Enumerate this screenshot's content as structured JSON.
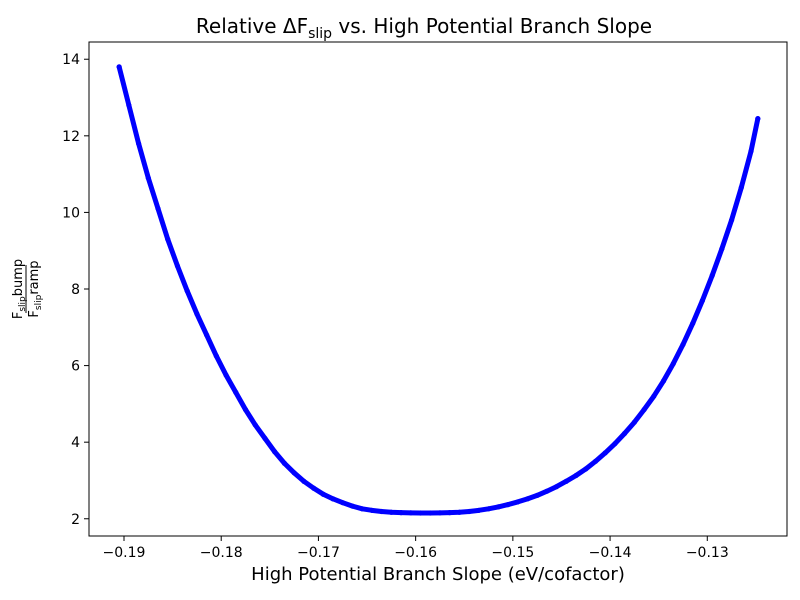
{
  "chart_data": {
    "type": "scatter",
    "title": {
      "prefix": "Relative ΔF",
      "sub": "slip",
      "suffix": " vs. High Potential Branch Slope"
    },
    "xlabel": "High Potential Branch Slope (eV/cofactor)",
    "ylabel": {
      "numerator": {
        "main": "F",
        "sub": "slip",
        "rest": "bump"
      },
      "denominator": {
        "main": "F",
        "sub": "slip",
        "rest": "ramp"
      }
    },
    "xlim": [
      -0.1936,
      -0.1218
    ],
    "ylim": [
      1.55,
      14.45
    ],
    "x_ticks": [
      -0.19,
      -0.18,
      -0.17,
      -0.16,
      -0.15,
      -0.14,
      -0.13
    ],
    "x_tick_labels": [
      "−0.19",
      "−0.18",
      "−0.17",
      "−0.16",
      "−0.15",
      "−0.14",
      "−0.13"
    ],
    "y_ticks": [
      2,
      4,
      6,
      8,
      10,
      12,
      14
    ],
    "y_tick_labels": [
      "2",
      "4",
      "6",
      "8",
      "10",
      "12",
      "14"
    ],
    "grid": false,
    "series": [
      {
        "color": "#0000ff",
        "x": [
          -0.1905,
          -0.1895,
          -0.1885,
          -0.1875,
          -0.1865,
          -0.1855,
          -0.1845,
          -0.1835,
          -0.1825,
          -0.1815,
          -0.1805,
          -0.1795,
          -0.1785,
          -0.1775,
          -0.1765,
          -0.1755,
          -0.1745,
          -0.1735,
          -0.1725,
          -0.1715,
          -0.1705,
          -0.1695,
          -0.1685,
          -0.1675,
          -0.1665,
          -0.1655,
          -0.1645,
          -0.1635,
          -0.1625,
          -0.1615,
          -0.1605,
          -0.1595,
          -0.1585,
          -0.1575,
          -0.1565,
          -0.1555,
          -0.1545,
          -0.1535,
          -0.1525,
          -0.1515,
          -0.1505,
          -0.1495,
          -0.1485,
          -0.1475,
          -0.1465,
          -0.1455,
          -0.1445,
          -0.1435,
          -0.1425,
          -0.1415,
          -0.1405,
          -0.1395,
          -0.1385,
          -0.1375,
          -0.1365,
          -0.1355,
          -0.1345,
          -0.1335,
          -0.1325,
          -0.1315,
          -0.1305,
          -0.1295,
          -0.1285,
          -0.1275,
          -0.1265,
          -0.1255,
          -0.1248
        ],
        "y": [
          13.8,
          12.8,
          11.8,
          10.9,
          10.1,
          9.3,
          8.6,
          7.95,
          7.35,
          6.8,
          6.25,
          5.75,
          5.3,
          4.85,
          4.45,
          4.1,
          3.75,
          3.45,
          3.2,
          2.98,
          2.8,
          2.64,
          2.52,
          2.42,
          2.33,
          2.26,
          2.22,
          2.19,
          2.17,
          2.16,
          2.155,
          2.15,
          2.15,
          2.155,
          2.16,
          2.17,
          2.19,
          2.22,
          2.26,
          2.31,
          2.37,
          2.44,
          2.52,
          2.61,
          2.72,
          2.84,
          2.98,
          3.13,
          3.3,
          3.5,
          3.72,
          3.96,
          4.23,
          4.52,
          4.85,
          5.2,
          5.6,
          6.05,
          6.55,
          7.1,
          7.7,
          8.35,
          9.05,
          9.8,
          10.65,
          11.6,
          12.45
        ]
      }
    ]
  }
}
